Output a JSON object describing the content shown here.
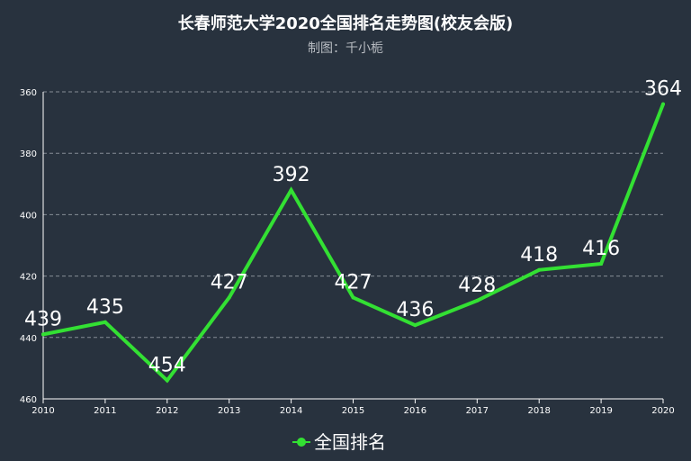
{
  "chart_data": {
    "type": "line",
    "title": "长春师范大学2020全国排名走势图(校友会版)",
    "subtitle": "制图：千小栀",
    "x": [
      "2010",
      "2011",
      "2012",
      "2013",
      "2014",
      "2015",
      "2016",
      "2017",
      "2018",
      "2019",
      "2020"
    ],
    "series": [
      {
        "name": "全国排名",
        "values": [
          439,
          435,
          454,
          427,
          392,
          427,
          436,
          428,
          418,
          416,
          364
        ],
        "color": "#33e033"
      }
    ],
    "y_axis": {
      "inverse": true,
      "min": 360,
      "max": 460,
      "ticks": [
        360,
        380,
        400,
        420,
        440,
        460
      ]
    },
    "grid": true,
    "legend_position": "bottom-center",
    "background": "#28323e"
  }
}
